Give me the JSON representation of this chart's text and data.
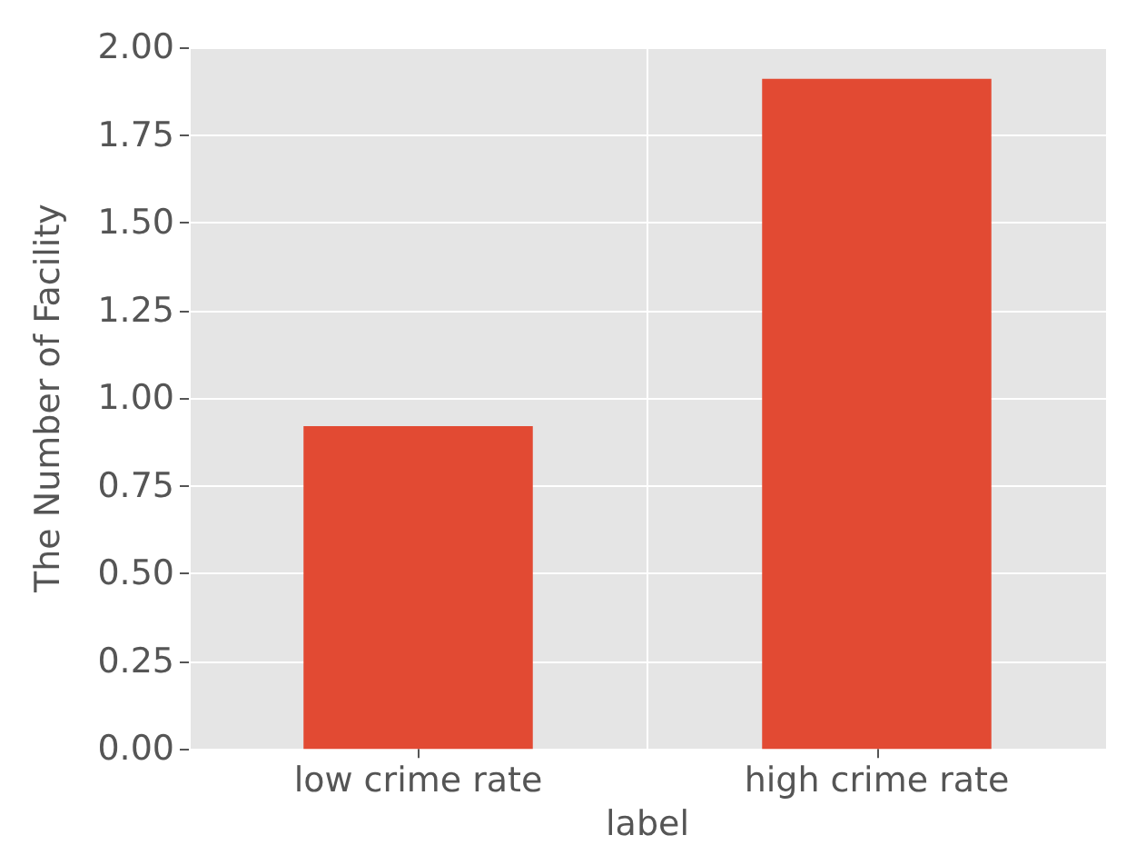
{
  "chart_data": {
    "type": "bar",
    "xlabel": "label",
    "ylabel": "The Number of Facility",
    "categories": [
      "low crime rate",
      "high crime rate"
    ],
    "values": [
      0.92,
      1.91
    ],
    "color": "#e24a33",
    "ylim": [
      0,
      2
    ],
    "yticks": [
      {
        "value": 0,
        "label": "0.00"
      },
      {
        "value": 0.25,
        "label": "0.25"
      },
      {
        "value": 0.5,
        "label": "0.50"
      },
      {
        "value": 0.75,
        "label": "0.75"
      },
      {
        "value": 1,
        "label": "1.00"
      },
      {
        "value": 1.25,
        "label": "1.25"
      },
      {
        "value": 1.5,
        "label": "1.50"
      },
      {
        "value": 1.75,
        "label": "1.75"
      },
      {
        "value": 2,
        "label": "2.00"
      }
    ],
    "grid": true
  }
}
